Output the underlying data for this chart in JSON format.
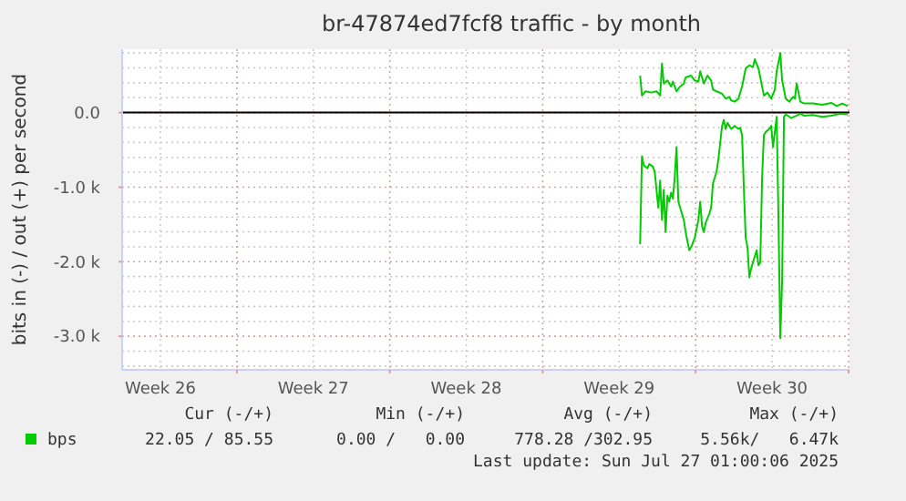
{
  "chart_data": {
    "type": "line",
    "title": "br-47874ed7fcf8 traffic - by month",
    "ylabel": "bits in (-) / out (+) per second",
    "xlim": [
      "2025-06-23T18:00",
      "2025-07-27T01:00"
    ],
    "xticks": [
      {
        "value": "2025-06-25T12:00",
        "label": "Week 26"
      },
      {
        "value": "2025-06-29T00:00",
        "label": null
      },
      {
        "value": "2025-07-02T12:00",
        "label": "Week 27"
      },
      {
        "value": "2025-07-06T00:00",
        "label": null
      },
      {
        "value": "2025-07-09T12:00",
        "label": "Week 28"
      },
      {
        "value": "2025-07-13T00:00",
        "label": null
      },
      {
        "value": "2025-07-16T12:00",
        "label": "Week 29"
      },
      {
        "value": "2025-07-20T00:00",
        "label": null
      },
      {
        "value": "2025-07-23T12:00",
        "label": "Week 30"
      },
      {
        "value": "2025-07-27T00:00",
        "label": null
      }
    ],
    "ylim": [
      -3450,
      850
    ],
    "yticks": [
      {
        "value": -3400,
        "label": null
      },
      {
        "value": -3200,
        "label": null
      },
      {
        "value": -3000,
        "label": "-3.0 k"
      },
      {
        "value": -2800,
        "label": null
      },
      {
        "value": -2600,
        "label": null
      },
      {
        "value": -2400,
        "label": null
      },
      {
        "value": -2200,
        "label": null
      },
      {
        "value": -2000,
        "label": "-2.0 k"
      },
      {
        "value": -1800,
        "label": null
      },
      {
        "value": -1600,
        "label": null
      },
      {
        "value": -1400,
        "label": null
      },
      {
        "value": -1200,
        "label": null
      },
      {
        "value": -1000,
        "label": "-1.0 k"
      },
      {
        "value": -800,
        "label": null
      },
      {
        "value": -600,
        "label": null
      },
      {
        "value": -400,
        "label": null
      },
      {
        "value": -200,
        "label": null
      },
      {
        "value": 0,
        "label": "0.0"
      },
      {
        "value": 200,
        "label": null
      },
      {
        "value": 400,
        "label": null
      },
      {
        "value": 600,
        "label": null
      },
      {
        "value": 800,
        "label": null
      }
    ],
    "grid": true,
    "legend": "bottom",
    "ref_lines": [
      {
        "axis": "y",
        "value": 0,
        "color": "#000000"
      }
    ],
    "annotations": [
      "Cur (-/+)",
      "22.05 / 85.55",
      "Min (-/+)",
      "0.00 /   0.00",
      "Avg (-/+)",
      "778.28 /302.95",
      "Max (-/+)",
      "5.56k/   6.47k",
      "Last update: Sun Jul 27 01:00:06 2025"
    ],
    "series": [
      {
        "name": "bps",
        "color": "#00cc00",
        "x": [
          "2025-07-17T11:00",
          "2025-07-17T13:00",
          "2025-07-17T17:00",
          "2025-07-17T23:00",
          "2025-07-18T05:00",
          "2025-07-18T09:00",
          "2025-07-18T11:00",
          "2025-07-18T13:00",
          "2025-07-18T17:00",
          "2025-07-18T21:00",
          "2025-07-18T23:00",
          "2025-07-19T03:00",
          "2025-07-19T07:00",
          "2025-07-19T11:00",
          "2025-07-19T13:00",
          "2025-07-19T19:00",
          "2025-07-19T23:00",
          "2025-07-20T03:00",
          "2025-07-20T05:00",
          "2025-07-20T09:00",
          "2025-07-20T13:00",
          "2025-07-20T17:00",
          "2025-07-20T19:00",
          "2025-07-20T23:00",
          "2025-07-21T05:00",
          "2025-07-21T09:00",
          "2025-07-21T13:00",
          "2025-07-21T15:00",
          "2025-07-21T19:00",
          "2025-07-21T23:00",
          "2025-07-22T03:00",
          "2025-07-22T07:00",
          "2025-07-22T11:00",
          "2025-07-22T15:00",
          "2025-07-22T17:00",
          "2025-07-22T21:00",
          "2025-07-23T01:00",
          "2025-07-23T03:00",
          "2025-07-23T07:00",
          "2025-07-23T11:00",
          "2025-07-23T15:00",
          "2025-07-23T17:00",
          "2025-07-23T21:00",
          "2025-07-23T23:00",
          "2025-07-24T03:00",
          "2025-07-24T07:00",
          "2025-07-24T11:00",
          "2025-07-24T13:00",
          "2025-07-24T15:00",
          "2025-07-24T19:00",
          "2025-07-24T23:00",
          "2025-07-25T09:00",
          "2025-07-25T19:00",
          "2025-07-26T05:00",
          "2025-07-26T11:00",
          "2025-07-26T17:00",
          "2025-07-26T23:00"
        ],
        "values": [
          496,
          228,
          285,
          268,
          285,
          228,
          659,
          390,
          431,
          350,
          415,
          285,
          350,
          390,
          472,
          496,
          431,
          415,
          553,
          390,
          496,
          431,
          309,
          285,
          252,
          187,
          211,
          163,
          146,
          187,
          350,
          593,
          634,
          610,
          715,
          593,
          350,
          228,
          268,
          187,
          309,
          553,
          797,
          431,
          187,
          146,
          211,
          187,
          390,
          146,
          122,
          122,
          106,
          130,
          89,
          122,
          89
        ]
      },
      {
        "color": "#00cc00",
        "x": [
          "2025-07-17T11:00",
          "2025-07-17T13:00",
          "2025-07-17T15:00",
          "2025-07-17T19:00",
          "2025-07-17T21:00",
          "2025-07-18T01:00",
          "2025-07-18T03:00",
          "2025-07-18T07:00",
          "2025-07-18T09:00",
          "2025-07-18T11:00",
          "2025-07-18T13:00",
          "2025-07-18T15:00",
          "2025-07-18T17:00",
          "2025-07-18T19:00",
          "2025-07-18T21:00",
          "2025-07-18T23:00",
          "2025-07-19T01:00",
          "2025-07-19T03:00",
          "2025-07-19T05:00",
          "2025-07-19T07:00",
          "2025-07-19T11:00",
          "2025-07-19T13:00",
          "2025-07-19T17:00",
          "2025-07-19T19:00",
          "2025-07-19T23:00",
          "2025-07-20T03:00",
          "2025-07-20T05:00",
          "2025-07-20T07:00",
          "2025-07-20T09:00",
          "2025-07-20T11:00",
          "2025-07-20T15:00",
          "2025-07-20T17:00",
          "2025-07-20T19:00",
          "2025-07-20T23:00",
          "2025-07-21T01:00",
          "2025-07-21T05:00",
          "2025-07-21T07:00",
          "2025-07-21T09:00",
          "2025-07-21T11:00",
          "2025-07-21T15:00",
          "2025-07-21T19:00",
          "2025-07-21T23:00",
          "2025-07-22T01:00",
          "2025-07-22T03:00",
          "2025-07-22T05:00",
          "2025-07-22T07:00",
          "2025-07-22T09:00",
          "2025-07-22T11:00",
          "2025-07-22T13:00",
          "2025-07-22T15:00",
          "2025-07-22T19:00",
          "2025-07-22T21:00",
          "2025-07-22T23:00",
          "2025-07-23T01:00",
          "2025-07-23T03:00",
          "2025-07-23T05:00",
          "2025-07-23T09:00",
          "2025-07-23T11:00",
          "2025-07-23T13:00",
          "2025-07-23T17:00",
          "2025-07-23T19:00",
          "2025-07-23T21:00",
          "2025-07-23T23:00",
          "2025-07-24T01:00",
          "2025-07-24T03:00",
          "2025-07-24T07:00",
          "2025-07-24T09:00",
          "2025-07-24T15:00",
          "2025-07-24T19:00",
          "2025-07-24T23:00",
          "2025-07-25T09:00",
          "2025-07-25T19:00",
          "2025-07-26T05:00",
          "2025-07-26T15:00",
          "2025-07-26T23:00"
        ],
        "values": [
          -1764,
          -585,
          -707,
          -748,
          -691,
          -724,
          -789,
          -1276,
          -911,
          -1439,
          -1033,
          -1602,
          -1114,
          -1195,
          -1073,
          -1154,
          -870,
          -463,
          -1195,
          -1276,
          -1439,
          -1602,
          -1846,
          -1805,
          -1683,
          -1439,
          -1195,
          -1520,
          -1602,
          -1480,
          -1358,
          -1276,
          -951,
          -789,
          -626,
          -179,
          -98,
          -220,
          -138,
          -220,
          -179,
          -220,
          -203,
          -301,
          -1033,
          -1683,
          -1805,
          -2211,
          -2089,
          -2008,
          -1846,
          -2049,
          -2008,
          -870,
          -301,
          -260,
          -220,
          -179,
          -463,
          -57,
          -1439,
          -3024,
          -2252,
          -57,
          -24,
          -57,
          -73,
          -41,
          -16,
          -41,
          -33,
          -57,
          -41,
          -16,
          -24
        ]
      }
    ]
  }
}
